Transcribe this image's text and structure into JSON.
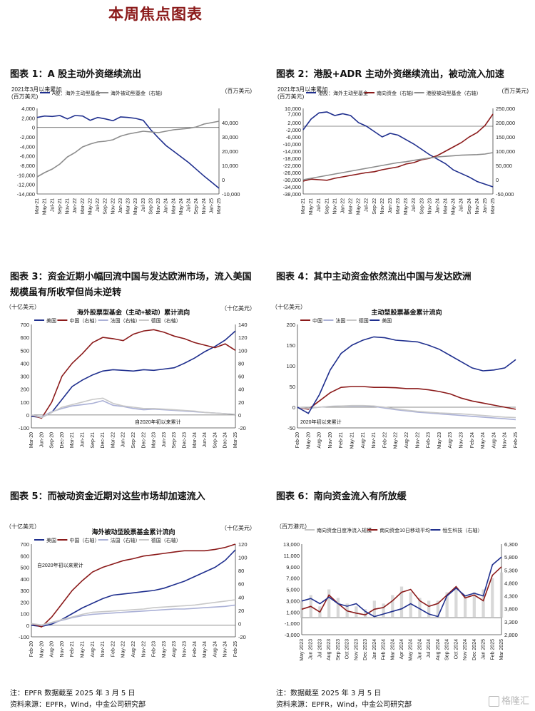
{
  "page_title": "本周焦点图表",
  "colors": {
    "navy": "#1f2f8e",
    "red": "#8b1a1a",
    "gray": "#8c8c8c",
    "light": "#aab0d6",
    "lightgray": "#c8c8c8"
  },
  "figures": [
    {
      "title": "图表 1：A 股主动外资继续流出"
    },
    {
      "title": "图表 2：港股+ADR 主动外资继续流出，被动流入加速"
    },
    {
      "title": "图表 3：资金近期小幅回流中国与发达欧洲市场，流入美国规模虽有所收窄但尚未逆转"
    },
    {
      "title": "图表 4：其中主动资金依然流出中国与发达欧洲"
    },
    {
      "title": "图表 5：而被动资金近期对这些市场却加速流入"
    },
    {
      "title": "图表 6：南向资金流入有所放缓"
    }
  ],
  "notes": {
    "left_note": "注：EPFR 数据截至 2025 年 3 月 5 日",
    "left_source": "资料来源：EPFR，Wind，中金公司研究部",
    "right_note": "注：数据截至 2025 年 3 月 5 日",
    "right_source": "资料来源：EPFR，Wind，中金公司研究部",
    "watermark": "格隆汇"
  },
  "chart_data": [
    {
      "type": "line",
      "title": "",
      "left_unit": "2021年3月以来累加\n(百万美元)",
      "right_unit": "(百万美元)",
      "ylim": [
        -14000,
        4000
      ],
      "yticks": [
        4000,
        2000,
        0,
        -2000,
        -4000,
        -6000,
        -8000,
        -10000,
        -12000,
        -14000
      ],
      "ylim_right": [
        -10000,
        50000
      ],
      "yticks_right": [
        40000,
        30000,
        20000,
        10000,
        0,
        -10000
      ],
      "x": [
        "Mar-21",
        "May-21",
        "Jul-21",
        "Sep-21",
        "Nov-21",
        "Jan-22",
        "Mar-22",
        "May-22",
        "Jul-22",
        "Sep-22",
        "Nov-22",
        "Jan-23",
        "Mar-23",
        "May-23",
        "Jul-23",
        "Sep-23",
        "Nov-23",
        "Jan-24",
        "Mar-24",
        "May-24",
        "Jul-24",
        "Sep-24",
        "Nov-24",
        "Jan-25",
        "Mar-25"
      ],
      "series": [
        {
          "name": "A股：海外主动型基金",
          "axis": "left",
          "color": "#1f2f8e",
          "values": [
            2100,
            2400,
            2300,
            2500,
            1800,
            2500,
            2400,
            1500,
            2100,
            1800,
            1400,
            2200,
            2100,
            1900,
            1500,
            -500,
            -2200,
            -3800,
            -5000,
            -6200,
            -7400,
            -8800,
            -10200,
            -11500,
            -12800
          ]
        },
        {
          "name": "海外被动型基金（右轴）",
          "axis": "right",
          "color": "#8c8c8c",
          "values": [
            2000,
            5000,
            7500,
            11000,
            16000,
            19000,
            23000,
            25000,
            26500,
            27000,
            28000,
            30500,
            32000,
            33000,
            34000,
            33500,
            33000,
            34000,
            35000,
            35500,
            36000,
            37000,
            39000,
            40000,
            41000
          ]
        }
      ]
    },
    {
      "type": "line",
      "title": "",
      "left_unit": "2021年3月以来累加\n(百万美元)",
      "right_unit": "(百万美元)",
      "ylim": [
        -38000,
        10000
      ],
      "yticks": [
        10000,
        7000,
        2000,
        -2000,
        -6000,
        -10000,
        -14000,
        -18000,
        -22000,
        -26000,
        -30000,
        -34000,
        -38000
      ],
      "ylim_right": [
        -50000,
        250000
      ],
      "yticks_right": [
        250000,
        200000,
        150000,
        100000,
        50000,
        0,
        -50000
      ],
      "x": [
        "Mar-21",
        "May-21",
        "Jul-21",
        "Sep-21",
        "Nov-21",
        "Jan-22",
        "Mar-22",
        "May-22",
        "Jul-22",
        "Sep-22",
        "Nov-22",
        "Jan-23",
        "Mar-23",
        "May-23",
        "Jul-23",
        "Sep-23",
        "Nov-23",
        "Jan-24",
        "Mar-24",
        "May-24",
        "Jul-24",
        "Sep-24",
        "Nov-24",
        "Jan-25",
        "Mar-25"
      ],
      "series": [
        {
          "name": "港股：海外主动型基金",
          "axis": "left",
          "color": "#1f2f8e",
          "values": [
            -2000,
            4000,
            7500,
            8000,
            6000,
            7000,
            6000,
            2000,
            0,
            -3000,
            -6000,
            -4000,
            -5000,
            -7500,
            -10000,
            -13000,
            -16000,
            -18500,
            -21000,
            -24500,
            -26500,
            -28500,
            -31000,
            -32500,
            -34000
          ]
        },
        {
          "name": "南向资金（右轴）",
          "axis": "right",
          "color": "#8b1a1a",
          "values": [
            -5000,
            2000,
            0,
            -2000,
            5000,
            10000,
            15000,
            20000,
            25000,
            28000,
            35000,
            40000,
            45000,
            55000,
            60000,
            70000,
            75000,
            85000,
            100000,
            115000,
            130000,
            150000,
            165000,
            190000,
            230000
          ]
        },
        {
          "name": "港股被动型基金（右轴）",
          "axis": "right",
          "color": "#8c8c8c",
          "values": [
            0,
            5000,
            10000,
            15000,
            20000,
            25000,
            30000,
            35000,
            40000,
            45000,
            50000,
            55000,
            60000,
            63000,
            68000,
            72000,
            76000,
            80000,
            82000,
            84000,
            86000,
            87000,
            88000,
            90000,
            95000
          ]
        }
      ]
    },
    {
      "type": "line",
      "title": "海外股票型基金（主动+被动）累计流向",
      "left_unit": "（十亿美元）",
      "right_unit": "（十亿美元）",
      "annotation": "自2020年初以来累计",
      "ylim": [
        -100,
        700
      ],
      "yticks": [
        700,
        600,
        500,
        400,
        300,
        200,
        100,
        0,
        -100
      ],
      "ylim_right": [
        -20,
        140
      ],
      "yticks_right": [
        140,
        120,
        100,
        80,
        60,
        40,
        20,
        0,
        -20
      ],
      "x": [
        "Mar-20",
        "Jun-20",
        "Sep-20",
        "Dec-20",
        "Mar-21",
        "Jun-21",
        "Sep-21",
        "Dec-21",
        "Mar-22",
        "Jun-22",
        "Sep-22",
        "Dec-22",
        "Mar-23",
        "Jun-23",
        "Sep-23",
        "Dec-23",
        "Mar-24",
        "Jun-24",
        "Sep-24",
        "Dec-24",
        "Mar-25"
      ],
      "series": [
        {
          "name": "美国",
          "axis": "left",
          "color": "#1f2f8e",
          "values": [
            -10,
            -20,
            20,
            120,
            220,
            270,
            310,
            340,
            350,
            345,
            340,
            350,
            345,
            355,
            365,
            400,
            440,
            490,
            530,
            580,
            650
          ]
        },
        {
          "name": "中国（右轴）",
          "axis": "right",
          "color": "#8b1a1a",
          "values": [
            0,
            -5,
            20,
            60,
            80,
            95,
            112,
            120,
            118,
            115,
            125,
            130,
            132,
            128,
            122,
            118,
            112,
            108,
            104,
            110,
            100
          ]
        },
        {
          "name": "法国（右轴）",
          "axis": "right",
          "color": "#aab0d6",
          "values": [
            0,
            -3,
            5,
            10,
            14,
            16,
            18,
            22,
            15,
            13,
            10,
            8,
            9,
            8,
            7,
            6,
            5,
            4,
            3,
            2,
            1
          ]
        },
        {
          "name": "德国（右轴）",
          "axis": "right",
          "color": "#c8c8c8",
          "values": [
            0,
            -4,
            4,
            12,
            16,
            20,
            24,
            26,
            18,
            14,
            12,
            10,
            10,
            9,
            8,
            7,
            6,
            4,
            3,
            2,
            1
          ]
        }
      ]
    },
    {
      "type": "line",
      "title": "主动型股票基金累计流向",
      "left_unit": "（十亿美元）",
      "annotation": "2020年初以来累计",
      "ylim": [
        -50,
        200
      ],
      "yticks": [
        200,
        150,
        100,
        50,
        0,
        -50
      ],
      "x": [
        "Feb-20",
        "May-20",
        "Aug-20",
        "Nov-20",
        "Feb-21",
        "May-21",
        "Aug-21",
        "Nov-21",
        "Feb-22",
        "May-22",
        "Aug-22",
        "Nov-22",
        "Feb-23",
        "May-23",
        "Aug-23",
        "Nov-23",
        "Feb-24",
        "May-24",
        "Aug-24",
        "Nov-24",
        "Feb-25"
      ],
      "series": [
        {
          "name": "中国",
          "color": "#8b1a1a",
          "values": [
            0,
            -5,
            15,
            35,
            48,
            50,
            50,
            48,
            48,
            47,
            45,
            45,
            42,
            38,
            32,
            22,
            15,
            10,
            5,
            0,
            -5
          ]
        },
        {
          "name": "法国",
          "color": "#aab0d6",
          "values": [
            0,
            -3,
            0,
            2,
            3,
            3,
            3,
            2,
            -2,
            -6,
            -9,
            -12,
            -14,
            -16,
            -18,
            -20,
            -22,
            -24,
            -26,
            -28,
            -30
          ]
        },
        {
          "name": "德国",
          "color": "#c8c8c8",
          "values": [
            0,
            -3,
            0,
            2,
            3,
            4,
            4,
            3,
            0,
            -4,
            -7,
            -10,
            -12,
            -14,
            -15,
            -16,
            -18,
            -20,
            -22,
            -24,
            -25
          ]
        },
        {
          "name": "美国",
          "color": "#1f2f8e",
          "values": [
            0,
            -15,
            30,
            90,
            130,
            150,
            162,
            170,
            168,
            162,
            160,
            158,
            150,
            140,
            125,
            110,
            95,
            88,
            90,
            95,
            115
          ]
        }
      ]
    },
    {
      "type": "line",
      "title": "海外被动型股票基金累计流向",
      "left_unit": "（十亿美元）",
      "right_unit": "（十亿美元）",
      "annotation": "自2020年初以来累计",
      "ylim": [
        -100,
        700
      ],
      "yticks": [
        700,
        600,
        500,
        400,
        300,
        200,
        100,
        0,
        -100
      ],
      "ylim_right": [
        -20,
        120
      ],
      "yticks_right": [
        120,
        100,
        80,
        60,
        40,
        20,
        0,
        -20
      ],
      "x": [
        "Feb-20",
        "May-20",
        "Aug-20",
        "Nov-20",
        "Feb-21",
        "May-21",
        "Aug-21",
        "Nov-21",
        "Feb-22",
        "May-22",
        "Aug-22",
        "Nov-22",
        "Feb-23",
        "May-23",
        "Aug-23",
        "Nov-23",
        "Feb-24",
        "May-24",
        "Aug-24",
        "Nov-24",
        "Feb-25"
      ],
      "series": [
        {
          "name": "美国",
          "axis": "left",
          "color": "#1f2f8e",
          "values": [
            0,
            -10,
            10,
            50,
            100,
            150,
            190,
            230,
            260,
            270,
            280,
            290,
            300,
            320,
            350,
            380,
            420,
            460,
            500,
            560,
            650
          ]
        },
        {
          "name": "中国（右轴）",
          "axis": "right",
          "color": "#8b1a1a",
          "values": [
            0,
            -5,
            10,
            30,
            50,
            65,
            78,
            85,
            90,
            95,
            98,
            102,
            104,
            106,
            108,
            110,
            110,
            110,
            112,
            115,
            120
          ]
        },
        {
          "name": "法国（右轴）",
          "axis": "right",
          "color": "#aab0d6",
          "values": [
            0,
            -3,
            1,
            5,
            9,
            12,
            14,
            15,
            16,
            17,
            18,
            19,
            20,
            21,
            22,
            22,
            23,
            24,
            25,
            26,
            28
          ]
        },
        {
          "name": "德国（右轴）",
          "axis": "right",
          "color": "#c8c8c8",
          "values": [
            0,
            -2,
            2,
            6,
            10,
            14,
            17,
            18,
            19,
            20,
            21,
            22,
            24,
            25,
            26,
            27,
            28,
            30,
            32,
            34,
            36
          ]
        }
      ]
    },
    {
      "type": "line",
      "title": "",
      "left_unit": "（百万港元）",
      "ylim": [
        -3000,
        13000
      ],
      "yticks": [
        13000,
        11000,
        9000,
        7000,
        5000,
        3000,
        1000,
        -1000,
        -3000
      ],
      "ylim_right": [
        2800,
        6300
      ],
      "yticks_right": [
        6300,
        5800,
        5300,
        4800,
        4300,
        3800,
        3300,
        2800
      ],
      "x": [
        "May 2023",
        "Jun 2023",
        "Jul 2023",
        "Aug 2023",
        "Sep 2023",
        "Oct 2023",
        "Nov 2023",
        "Dec 2023",
        "Jan 2024",
        "Feb 2024",
        "Mar 2024",
        "Apr 2024",
        "May 2024",
        "Jun 2024",
        "Jul 2024",
        "Aug 2024",
        "Sep 2024",
        "Oct 2024",
        "Nov 2024",
        "Dec 2024",
        "Jan 2025",
        "Feb 2025",
        "Mar 2025"
      ],
      "series": [
        {
          "name": "南向资金日度净流入规模",
          "type": "bar",
          "axis": "left",
          "color": "#c8c8c8",
          "values": [
            3000,
            4000,
            2000,
            5000,
            3500,
            2500,
            2000,
            1500,
            3000,
            2500,
            4000,
            5500,
            4500,
            3500,
            3000,
            3000,
            4500,
            5000,
            4000,
            4500,
            5000,
            7000,
            8000
          ]
        },
        {
          "name": "南向资金10日移动平均",
          "axis": "left",
          "color": "#8b1a1a",
          "values": [
            1500,
            2000,
            1000,
            4000,
            2500,
            1200,
            800,
            500,
            1500,
            1800,
            3000,
            4500,
            5000,
            3000,
            2000,
            2500,
            4000,
            5500,
            3500,
            4000,
            3000,
            7500,
            9000
          ]
        },
        {
          "name": "恒生科技（右轴）",
          "axis": "right",
          "color": "#1f2f8e",
          "values": [
            4100,
            4200,
            4000,
            4250,
            4000,
            3900,
            4000,
            3700,
            3500,
            3600,
            3700,
            3800,
            4000,
            3800,
            3600,
            3500,
            4300,
            4600,
            4300,
            4400,
            4300,
            5500,
            5800
          ]
        }
      ]
    }
  ]
}
